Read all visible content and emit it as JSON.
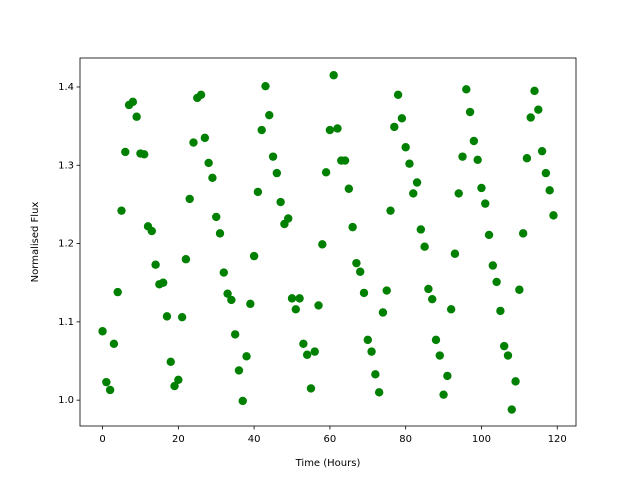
{
  "chart_data": {
    "type": "scatter",
    "xlabel": "Time (Hours)",
    "ylabel": "Normalised Flux",
    "color": "#008000",
    "x": [
      0,
      1,
      2,
      3,
      4,
      5,
      6,
      7,
      8,
      9,
      10,
      11,
      12,
      13,
      14,
      15,
      16,
      17,
      18,
      19,
      20,
      21,
      22,
      23,
      24,
      25,
      26,
      27,
      28,
      29,
      30,
      31,
      32,
      33,
      34,
      35,
      36,
      37,
      38,
      39,
      40,
      41,
      42,
      43,
      44,
      45,
      46,
      47,
      48,
      49,
      50,
      51,
      52,
      53,
      54,
      55,
      56,
      57,
      58,
      59,
      60,
      61,
      62,
      63,
      64,
      65,
      66,
      67,
      68,
      69,
      70,
      71,
      72,
      73,
      74,
      75,
      76,
      77,
      78,
      79,
      80,
      81,
      82,
      83,
      84,
      85,
      86,
      87,
      88,
      89,
      90,
      91,
      92,
      93,
      94,
      95,
      96,
      97,
      98,
      99,
      100,
      101,
      102,
      103,
      104,
      105,
      106,
      107,
      108,
      109,
      110,
      111,
      112,
      113,
      114,
      115,
      116,
      117,
      118,
      119
    ],
    "values": [
      1.088,
      1.023,
      1.013,
      1.072,
      1.138,
      1.242,
      1.317,
      1.377,
      1.381,
      1.362,
      1.315,
      1.314,
      1.222,
      1.216,
      1.173,
      1.148,
      1.15,
      1.107,
      1.049,
      1.018,
      1.026,
      1.106,
      1.18,
      1.257,
      1.329,
      1.386,
      1.39,
      1.335,
      1.303,
      1.284,
      1.234,
      1.213,
      1.163,
      1.136,
      1.128,
      1.084,
      1.038,
      0.999,
      1.056,
      1.123,
      1.184,
      1.266,
      1.345,
      1.401,
      1.364,
      1.311,
      1.29,
      1.253,
      1.225,
      1.232,
      1.13,
      1.116,
      1.13,
      1.072,
      1.058,
      1.015,
      1.062,
      1.121,
      1.199,
      1.291,
      1.345,
      1.415,
      1.347,
      1.306,
      1.306,
      1.27,
      1.221,
      1.175,
      1.164,
      1.137,
      1.077,
      1.062,
      1.033,
      1.01,
      1.112,
      1.14,
      1.242,
      1.349,
      1.39,
      1.36,
      1.323,
      1.302,
      1.264,
      1.278,
      1.218,
      1.196,
      1.142,
      1.129,
      1.077,
      1.057,
      1.007,
      1.031,
      1.116,
      1.187,
      1.264,
      1.311,
      1.397,
      1.368,
      1.331,
      1.307,
      1.271,
      1.251,
      1.211,
      1.172,
      1.151,
      1.114,
      1.069,
      1.057,
      0.988,
      1.024,
      1.141,
      1.213,
      1.309,
      1.361,
      1.395,
      1.371,
      1.318,
      1.29,
      1.268,
      1.236
    ],
    "xlim": [
      -5.95,
      124.95
    ],
    "xticks": [
      0,
      20,
      40,
      60,
      80,
      100,
      120
    ],
    "ylim": [
      0.967,
      1.437
    ],
    "yticks": [
      {
        "value": 1.0,
        "label": "1.0"
      },
      {
        "value": 1.1,
        "label": "1.1"
      },
      {
        "value": 1.2,
        "label": "1.2"
      },
      {
        "value": 1.3,
        "label": "1.3"
      },
      {
        "value": 1.4,
        "label": "1.4"
      }
    ]
  }
}
